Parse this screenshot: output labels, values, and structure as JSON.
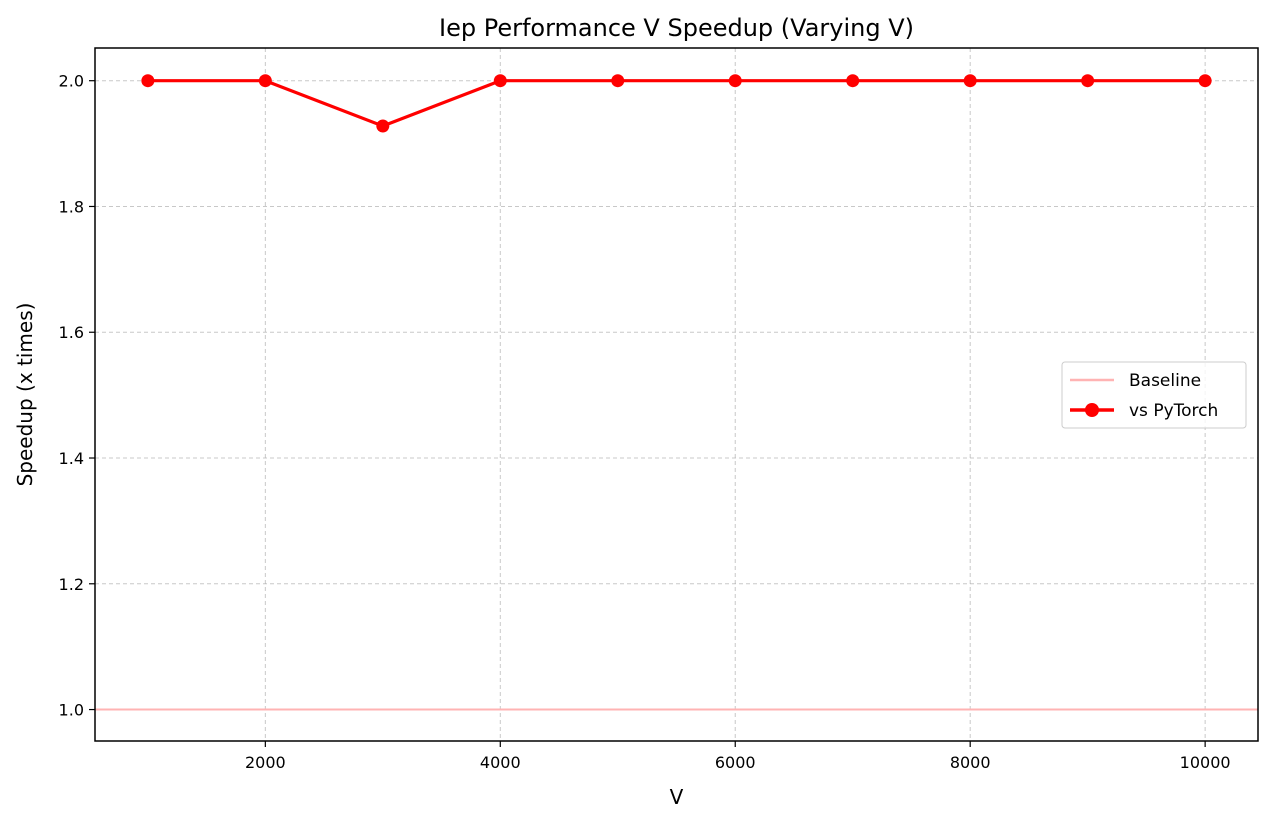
{
  "chart_data": {
    "type": "line",
    "title": "Iep Performance V Speedup (Varying V)",
    "xlabel": "V",
    "ylabel": "Speedup (x times)",
    "x": [
      1000,
      2000,
      3000,
      4000,
      5000,
      6000,
      7000,
      8000,
      9000,
      10000
    ],
    "xlim": [
      550,
      10450
    ],
    "ylim": [
      0.95,
      2.052
    ],
    "xticks": [
      2000,
      4000,
      6000,
      8000,
      10000
    ],
    "xtick_labels": [
      "2000",
      "4000",
      "6000",
      "8000",
      "10000"
    ],
    "yticks": [
      1.0,
      1.2,
      1.4,
      1.6,
      1.8,
      2.0
    ],
    "ytick_labels": [
      "1.0",
      "1.2",
      "1.4",
      "1.6",
      "1.8",
      "2.0"
    ],
    "grid": true,
    "legend_position": "center-right",
    "series": [
      {
        "name": "Baseline",
        "kind": "hline",
        "value": 1.0,
        "color": "#ffb3b3"
      },
      {
        "name": "vs PyTorch",
        "kind": "line-markers",
        "values": [
          2.0,
          2.0,
          1.928,
          2.0,
          2.0,
          2.0,
          2.0,
          2.0,
          2.0,
          2.0
        ],
        "color": "#ff0000"
      }
    ]
  }
}
